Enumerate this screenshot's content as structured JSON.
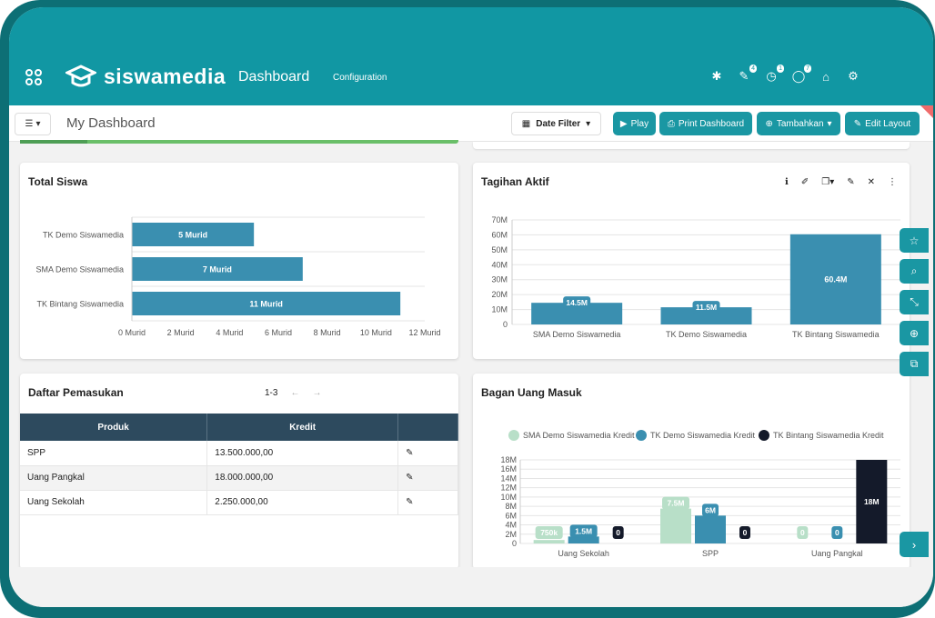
{
  "header": {
    "brand": "siswamedia",
    "title": "Dashboard",
    "config": "Configuration",
    "badges": [
      "4",
      "1",
      "7"
    ]
  },
  "toolbar": {
    "dashboard_title": "My Dashboard",
    "date_filter": "Date Filter",
    "play": "Play",
    "print": "Print Dashboard",
    "add": "Tambahkan",
    "edit": "Edit Layout"
  },
  "cards": {
    "total_siswa": "Total Siswa",
    "tagihan": "Tagihan Aktif",
    "pemasukan": "Daftar Pemasukan",
    "bagan": "Bagan Uang Masuk"
  },
  "pemasukan": {
    "pager": "1-3",
    "columns": [
      "Produk",
      "Kredit",
      ""
    ],
    "rows": [
      {
        "produk": "SPP",
        "kredit": "13.500.000,00"
      },
      {
        "produk": "Uang Pangkal",
        "kredit": "18.000.000,00"
      },
      {
        "produk": "Uang Sekolah",
        "kredit": "2.250.000,00"
      }
    ]
  },
  "colors": {
    "primary": "#1197a3",
    "bar": "#3a8fb0",
    "light": "#b8dfc8",
    "dark": "#141a2a",
    "header_table": "#2d4a5e"
  },
  "chart_data": [
    {
      "type": "bar",
      "orientation": "horizontal",
      "title": "Total Siswa",
      "categories": [
        "TK Demo Siswamedia",
        "SMA Demo Siswamedia",
        "TK Bintang Siswamedia"
      ],
      "values": [
        5,
        7,
        11
      ],
      "data_labels": [
        "5 Murid",
        "7 Murid",
        "11 Murid"
      ],
      "xlim": [
        0,
        12
      ],
      "xticks": [
        "0 Murid",
        "2 Murid",
        "4 Murid",
        "6 Murid",
        "8 Murid",
        "10 Murid",
        "12 Murid"
      ],
      "grid": true
    },
    {
      "type": "bar",
      "title": "Tagihan Aktif",
      "categories": [
        "SMA Demo Siswamedia",
        "TK Demo Siswamedia",
        "TK Bintang Siswamedia"
      ],
      "values": [
        14.5,
        11.5,
        60.4
      ],
      "data_labels": [
        "14.5M",
        "11.5M",
        "60.4M"
      ],
      "ylim": [
        0,
        70
      ],
      "yticks": [
        "0",
        "10M",
        "20M",
        "30M",
        "40M",
        "50M",
        "60M",
        "70M"
      ],
      "grid": true
    },
    {
      "type": "bar",
      "title": "Bagan Uang Masuk",
      "categories": [
        "Uang Sekolah",
        "SPP",
        "Uang Pangkal"
      ],
      "series": [
        {
          "name": "SMA Demo Siswamedia Kredit",
          "values": [
            0.75,
            7.5,
            0
          ],
          "labels": [
            "750k",
            "7.5M",
            "0"
          ]
        },
        {
          "name": "TK Demo Siswamedia  Kredit",
          "values": [
            1.5,
            6,
            0
          ],
          "labels": [
            "1.5M",
            "6M",
            "0"
          ]
        },
        {
          "name": "TK Bintang Siswamedia Kredit",
          "values": [
            0,
            0,
            18
          ],
          "labels": [
            "0",
            "0",
            "18M"
          ]
        }
      ],
      "ylim": [
        0,
        18
      ],
      "yticks": [
        "0",
        "2M",
        "4M",
        "6M",
        "8M",
        "10M",
        "12M",
        "14M",
        "16M",
        "18M"
      ],
      "legend": "top",
      "grid": true
    }
  ]
}
